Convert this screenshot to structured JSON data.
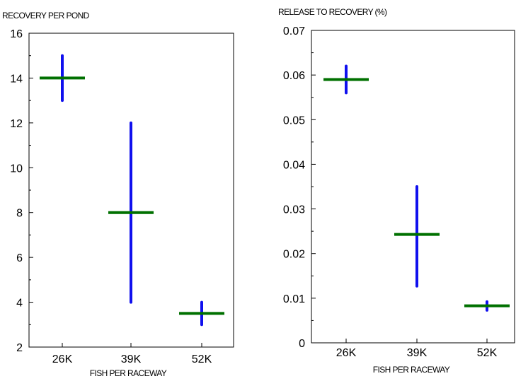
{
  "chart_data": [
    {
      "type": "scatter",
      "title": "RECOVERY PER POND",
      "xlabel": "FISH PER RACEWAY",
      "ylabel": "",
      "categories": [
        "26K",
        "39K",
        "52K"
      ],
      "ylim": [
        2,
        16
      ],
      "yticks": [
        "2",
        "4",
        "6",
        "8",
        "10",
        "12",
        "14",
        "16"
      ],
      "series": [
        {
          "mean": 14,
          "low": 13,
          "high": 15
        },
        {
          "mean": 8,
          "low": 4,
          "high": 12
        },
        {
          "mean": 3.5,
          "low": 3,
          "high": 4
        }
      ],
      "grid": false,
      "colors": {
        "range": "#1010ee",
        "mean": "#007000"
      }
    },
    {
      "type": "scatter",
      "title": "RELEASE TO RECOVERY  (%)",
      "xlabel": "FISH PER RACEWAY",
      "ylabel": "",
      "categories": [
        "26K",
        "39K",
        "52K"
      ],
      "ylim": [
        0,
        0.07
      ],
      "yticks": [
        "0",
        "0.01",
        "0.02",
        "0.03",
        "0.04",
        "0.05",
        "0.06",
        "0.07"
      ],
      "series": [
        {
          "mean": 0.059,
          "low": 0.056,
          "high": 0.062
        },
        {
          "mean": 0.0243,
          "low": 0.0127,
          "high": 0.035
        },
        {
          "mean": 0.0083,
          "low": 0.0073,
          "high": 0.0092
        }
      ],
      "grid": false,
      "colors": {
        "range": "#1010ee",
        "mean": "#007000"
      }
    }
  ]
}
